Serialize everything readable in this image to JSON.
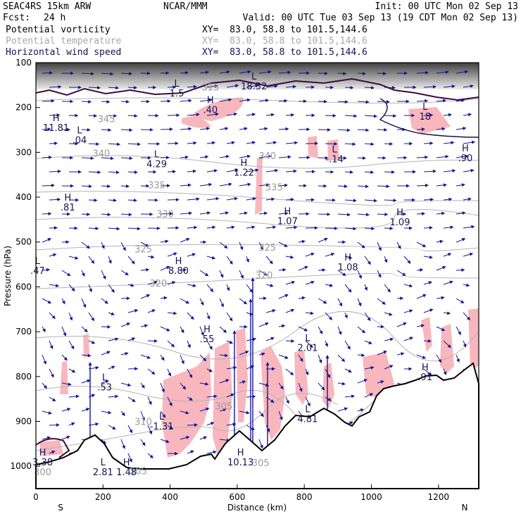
{
  "header": {
    "model": "SEAC4RS 15km ARW",
    "org": "NCAR/MMM",
    "init": "Init: 00 UTC Mon 02 Sep 13",
    "fcst_label": "Fcst:",
    "fcst_value": "24 h",
    "valid": "Valid: 00 UTC Tue 03 Sep 13 (19 CDT Mon 02 Sep 13)"
  },
  "legend": [
    {
      "name": "Potential vorticity",
      "xy": "XY=  83.0, 58.8 to 101.5,144.6",
      "color": "#000000"
    },
    {
      "name": "Potential temperature",
      "xy": "XY=  83.0, 58.8 to 101.5,144.6",
      "color": "#a8a8a8"
    },
    {
      "name": "Horizontal wind speed",
      "xy": "XY=  83.0, 58.8 to 101.5,144.6",
      "color": "#141450"
    }
  ],
  "chart_data": {
    "type": "cross-section",
    "ylabel": "Pressure (hPa)",
    "xlabel": "Distance (km)",
    "ylim": [
      1050,
      100
    ],
    "xlim": [
      0,
      1320
    ],
    "y_ticks": [
      100,
      200,
      300,
      400,
      500,
      600,
      700,
      800,
      900,
      1000
    ],
    "x_ticks": [
      0,
      200,
      400,
      600,
      800,
      1000,
      1200
    ],
    "end_labels": {
      "left": "S",
      "right": "N"
    },
    "theta_contours": [
      {
        "label": "315",
        "x": 520,
        "p": 162
      },
      {
        "label": "345",
        "x": 210,
        "p": 233
      },
      {
        "label": "340",
        "x": 195,
        "p": 310
      },
      {
        "label": "340",
        "x": 690,
        "p": 315
      },
      {
        "label": "335",
        "x": 360,
        "p": 380
      },
      {
        "label": "335",
        "x": 710,
        "p": 385
      },
      {
        "label": "330",
        "x": 385,
        "p": 445
      },
      {
        "label": "325",
        "x": 320,
        "p": 523
      },
      {
        "label": "325",
        "x": 690,
        "p": 519
      },
      {
        "label": "320",
        "x": 365,
        "p": 599
      },
      {
        "label": "320",
        "x": 680,
        "p": 581
      },
      {
        "label": "310",
        "x": 320,
        "p": 908
      },
      {
        "label": "305",
        "x": 670,
        "p": 1000
      },
      {
        "label": "305",
        "x": 560,
        "p": 873
      },
      {
        "label": "305",
        "x": 305,
        "p": 1018
      },
      {
        "label": "300",
        "x": 20,
        "p": 1020
      }
    ],
    "extrema": [
      {
        "type": "H",
        "value": "11.81",
        "x": 60,
        "p": 252
      },
      {
        "type": "L",
        "value": ".04",
        "x": 130,
        "p": 280
      },
      {
        "type": "L",
        "value": "1.5",
        "x": 420,
        "p": 175
      },
      {
        "type": "L",
        "value": "18.32",
        "x": 650,
        "p": 160
      },
      {
        "type": "H",
        "value": ".40",
        "x": 520,
        "p": 212
      },
      {
        "type": "L",
        "value": "4.29",
        "x": 360,
        "p": 333
      },
      {
        "type": "H",
        "value": "1.22",
        "x": 620,
        "p": 352
      },
      {
        "type": "L",
        "value": "-.14",
        "x": 890,
        "p": 322
      },
      {
        "type": "L",
        "value": "18",
        "x": 1160,
        "p": 227
      },
      {
        "type": "H",
        "value": ".90",
        "x": 1280,
        "p": 320
      },
      {
        "type": "H",
        "value": ".81",
        "x": 95,
        "p": 430
      },
      {
        "type": "H",
        "value": "1.07",
        "x": 750,
        "p": 460
      },
      {
        "type": "H",
        "value": "1.09",
        "x": 1085,
        "p": 463
      },
      {
        "type": "H",
        "value": "8.80",
        "x": 425,
        "p": 571
      },
      {
        "type": "H",
        "value": "1.08",
        "x": 930,
        "p": 563
      },
      {
        "type": "L",
        "value": ".47",
        "x": 5,
        "p": 571
      },
      {
        "type": "H",
        "value": ".55",
        "x": 510,
        "p": 723
      },
      {
        "type": "L",
        "value": "2.01",
        "x": 810,
        "p": 743
      },
      {
        "type": "L",
        "value": ".53",
        "x": 205,
        "p": 831
      },
      {
        "type": "H",
        "value": ".91",
        "x": 1160,
        "p": 808
      },
      {
        "type": "L",
        "value": "-1.31",
        "x": 375,
        "p": 918
      },
      {
        "type": "L",
        "value": "4.81",
        "x": 810,
        "p": 902
      },
      {
        "type": "H",
        "value": "3.38",
        "x": 20,
        "p": 998
      },
      {
        "type": "L",
        "value": "2.81",
        "x": 200,
        "p": 1020
      },
      {
        "type": "H",
        "value": "1.48",
        "x": 270,
        "p": 1020
      },
      {
        "type": "H",
        "value": "10.13",
        "x": 610,
        "p": 998
      }
    ]
  }
}
